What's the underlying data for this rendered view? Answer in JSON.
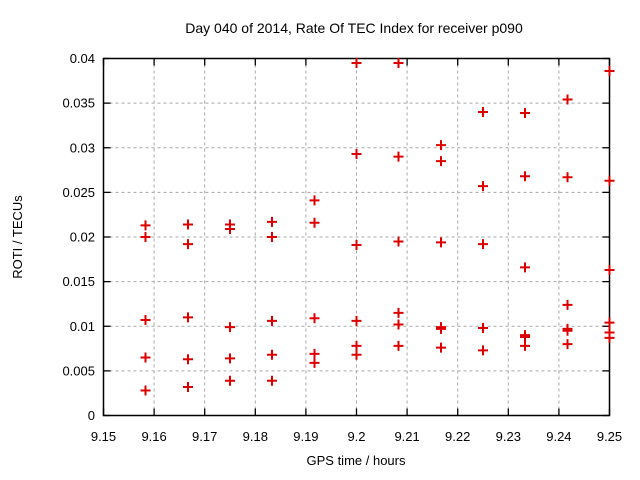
{
  "chart_data": {
    "type": "scatter",
    "title": "Day 040 of 2014, Rate Of TEC Index for receiver p090",
    "xlabel": "GPS time / hours",
    "ylabel": "ROTI / TECUs",
    "xlim": [
      9.15,
      9.25
    ],
    "ylim": [
      0,
      0.04
    ],
    "grid": true,
    "legend": false,
    "marker": {
      "shape": "plus",
      "color": "#dd0000",
      "size": 11
    },
    "xticks": {
      "values": [
        9.15,
        9.16,
        9.17,
        9.18,
        9.19,
        9.2,
        9.21,
        9.22,
        9.23,
        9.24,
        9.25
      ],
      "labels": [
        "9.15",
        "9.16",
        "9.17",
        "9.18",
        "9.19",
        "9.2",
        "9.21",
        "9.22",
        "9.23",
        "9.24",
        "9.25"
      ]
    },
    "yticks": {
      "values": [
        0,
        0.005,
        0.01,
        0.015,
        0.02,
        0.025,
        0.03,
        0.035,
        0.04
      ],
      "labels": [
        "0",
        "0.005",
        "0.01",
        "0.015",
        "0.02",
        "0.025",
        "0.03",
        "0.035",
        "0.04"
      ]
    },
    "series": [
      {
        "name": "ROTI",
        "points": [
          [
            9.1583,
            0.0213
          ],
          [
            9.1583,
            0.02
          ],
          [
            9.1583,
            0.0107
          ],
          [
            9.1583,
            0.0065
          ],
          [
            9.1583,
            0.0028
          ],
          [
            9.1667,
            0.0214
          ],
          [
            9.1667,
            0.0192
          ],
          [
            9.1667,
            0.011
          ],
          [
            9.1667,
            0.0063
          ],
          [
            9.1667,
            0.0032
          ],
          [
            9.175,
            0.0214
          ],
          [
            9.175,
            0.0209
          ],
          [
            9.175,
            0.0099
          ],
          [
            9.175,
            0.0064
          ],
          [
            9.175,
            0.0039
          ],
          [
            9.1833,
            0.0217
          ],
          [
            9.1833,
            0.02
          ],
          [
            9.1833,
            0.0106
          ],
          [
            9.1833,
            0.0068
          ],
          [
            9.1833,
            0.0039
          ],
          [
            9.1917,
            0.0241
          ],
          [
            9.1917,
            0.0216
          ],
          [
            9.1917,
            0.0109
          ],
          [
            9.1917,
            0.0069
          ],
          [
            9.1917,
            0.0059
          ],
          [
            9.2,
            0.0395
          ],
          [
            9.2,
            0.0293
          ],
          [
            9.2,
            0.0191
          ],
          [
            9.2,
            0.0106
          ],
          [
            9.2,
            0.0078
          ],
          [
            9.2,
            0.0068
          ],
          [
            9.2083,
            0.0395
          ],
          [
            9.2083,
            0.029
          ],
          [
            9.2083,
            0.0195
          ],
          [
            9.2083,
            0.0115
          ],
          [
            9.2083,
            0.0102
          ],
          [
            9.2083,
            0.0078
          ],
          [
            9.2167,
            0.0303
          ],
          [
            9.2167,
            0.0285
          ],
          [
            9.2167,
            0.0194
          ],
          [
            9.2167,
            0.0099
          ],
          [
            9.2167,
            0.0097
          ],
          [
            9.2167,
            0.0076
          ],
          [
            9.225,
            0.034
          ],
          [
            9.225,
            0.0257
          ],
          [
            9.225,
            0.0192
          ],
          [
            9.225,
            0.0098
          ],
          [
            9.225,
            0.0073
          ],
          [
            9.2333,
            0.0339
          ],
          [
            9.2333,
            0.0268
          ],
          [
            9.2333,
            0.0166
          ],
          [
            9.2333,
            0.009
          ],
          [
            9.2333,
            0.0088
          ],
          [
            9.2333,
            0.0078
          ],
          [
            9.2417,
            0.0354
          ],
          [
            9.2417,
            0.0267
          ],
          [
            9.2417,
            0.0124
          ],
          [
            9.2417,
            0.0097
          ],
          [
            9.2417,
            0.0095
          ],
          [
            9.2417,
            0.008
          ],
          [
            9.25,
            0.0386
          ],
          [
            9.25,
            0.0263
          ],
          [
            9.25,
            0.0163
          ],
          [
            9.25,
            0.0104
          ],
          [
            9.25,
            0.0093
          ],
          [
            9.25,
            0.0087
          ]
        ]
      }
    ]
  },
  "colors": {
    "background": "#ffffff",
    "marker": "#dd0000",
    "grid": "#a8a8a8",
    "axis": "#000000",
    "text": "#000000"
  }
}
